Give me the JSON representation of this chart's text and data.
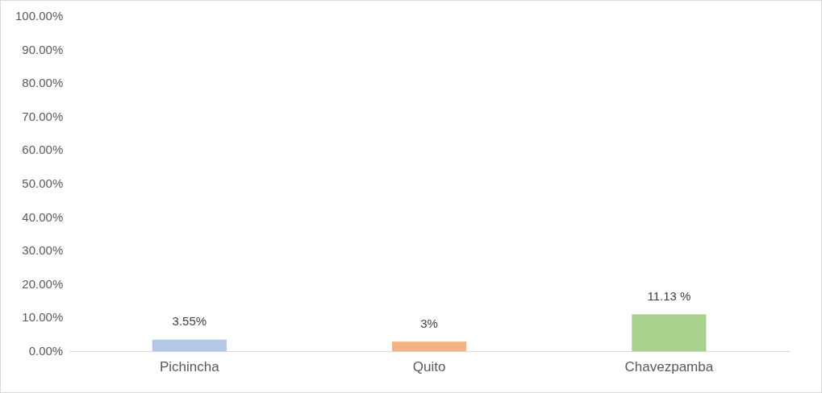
{
  "chart_data": {
    "type": "bar",
    "categories": [
      "Pichincha",
      "Quito",
      "Chavezpamba"
    ],
    "values": [
      3.55,
      3,
      11.13
    ],
    "colors": [
      "#b4c7e7",
      "#f4b183",
      "#a9d18e"
    ],
    "value_labels": [
      "3.55%",
      "3%",
      "11.13 %"
    ],
    "ylim": [
      0,
      100
    ],
    "yticks": [
      {
        "value": 0,
        "label": "0.00%"
      },
      {
        "value": 10,
        "label": "10.00%"
      },
      {
        "value": 20,
        "label": "20.00%"
      },
      {
        "value": 30,
        "label": "30.00%"
      },
      {
        "value": 40,
        "label": "40.00%"
      },
      {
        "value": 50,
        "label": "50.00%"
      },
      {
        "value": 60,
        "label": "60.00%"
      },
      {
        "value": 70,
        "label": "70.00%"
      },
      {
        "value": 80,
        "label": "80.00%"
      },
      {
        "value": 90,
        "label": "90.00%"
      },
      {
        "value": 100,
        "label": "100.00%"
      }
    ],
    "grid": false,
    "legend": false
  }
}
